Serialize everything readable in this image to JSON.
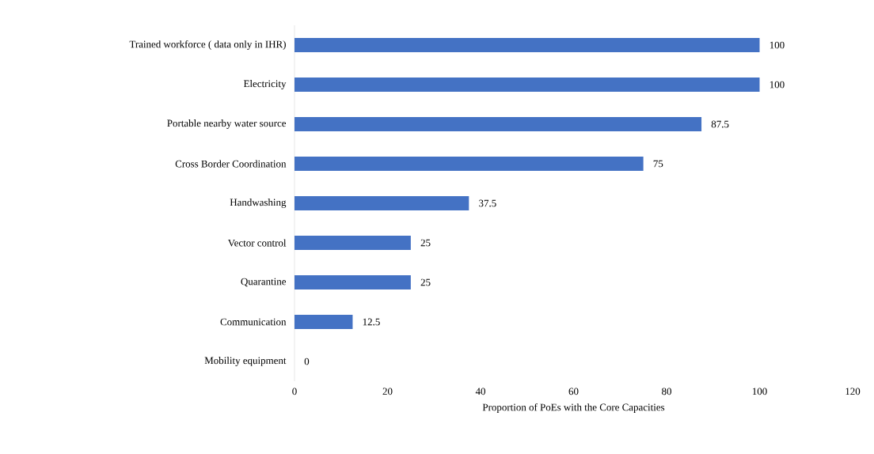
{
  "chart_data": {
    "type": "bar",
    "orientation": "horizontal",
    "xlabel": "Proportion of PoEs  with the Core Capacities",
    "categories": [
      "Trained workforce ( data only in IHR)",
      "Electricity",
      "Portable nearby water source",
      "Cross Border Coordination",
      "Handwashing",
      "Vector control",
      "Quarantine",
      "Communication",
      "Mobility equipment"
    ],
    "values": [
      100,
      100,
      87.5,
      75,
      37.5,
      25,
      25,
      12.5,
      0
    ],
    "color": "#4472c4",
    "xlim": [
      0,
      120
    ],
    "xticks": [
      0,
      20,
      40,
      60,
      80,
      100,
      120
    ],
    "grid": false,
    "data_labels": true
  }
}
